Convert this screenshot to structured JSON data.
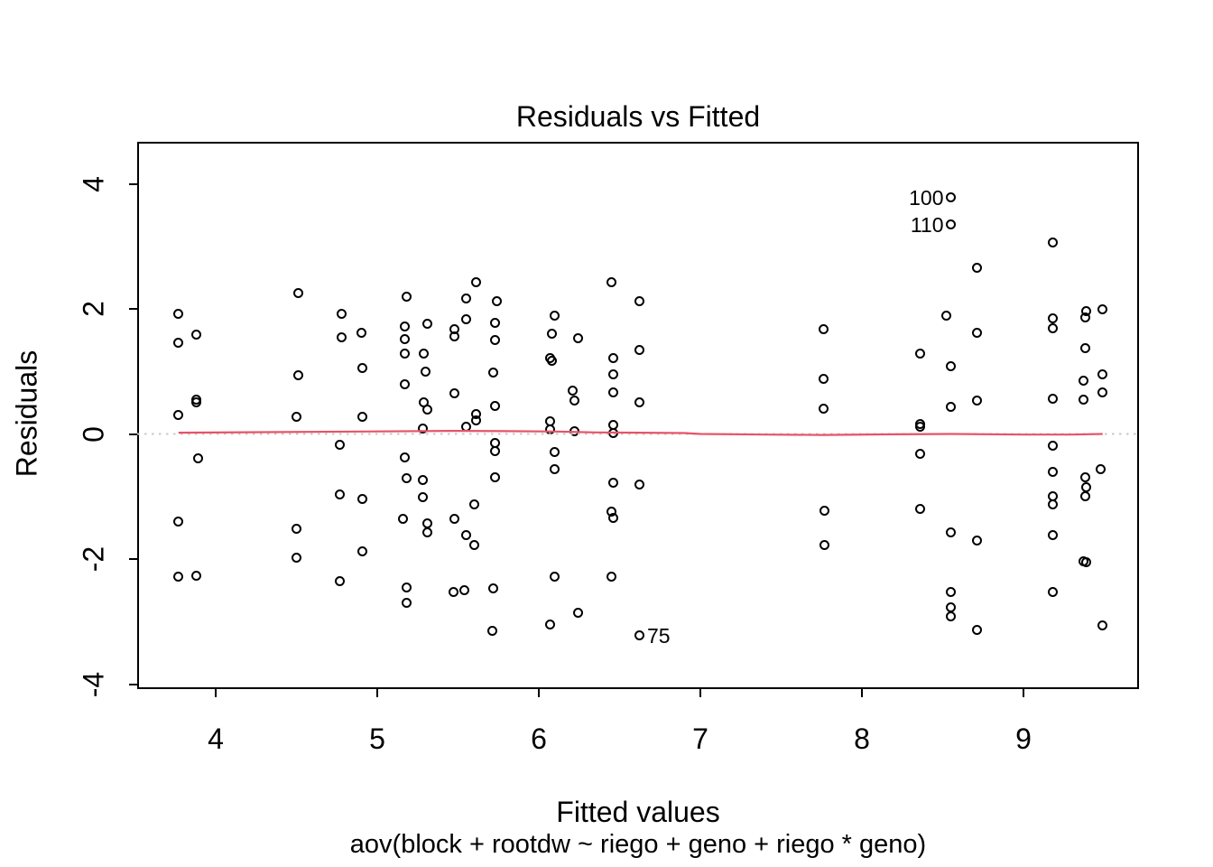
{
  "title": "Residuals vs Fitted",
  "axes": {
    "xlabel": "Fitted values",
    "ylabel": "Residuals",
    "subtitle": "aov(block + rootdw ~ riego + geno + riego * geno)"
  },
  "colors": {
    "point": "#000000",
    "smoother": "#e65468",
    "zero_line": "#c9c9c9",
    "text": "#000000"
  },
  "chart_data": {
    "type": "scatter",
    "title": "Residuals vs Fitted",
    "xlabel": "Fitted values",
    "ylabel": "Residuals",
    "subtitle": "aov(block + rootdw ~ riego + geno + riego * geno)",
    "x_ticks": [
      4,
      5,
      6,
      7,
      8,
      9
    ],
    "y_ticks": [
      -4,
      -2,
      0,
      2,
      4
    ],
    "xlim": [
      3.514,
      9.715
    ],
    "ylim": [
      -4.079,
      4.672
    ],
    "grid": false,
    "zero_reference_line_y": 0,
    "points": [
      [
        3.77,
        1.92
      ],
      [
        3.77,
        1.46
      ],
      [
        3.77,
        0.31
      ],
      [
        3.77,
        -1.4
      ],
      [
        3.77,
        -2.28
      ],
      [
        3.88,
        1.59
      ],
      [
        3.88,
        0.55
      ],
      [
        3.88,
        0.51
      ],
      [
        3.89,
        -0.39
      ],
      [
        3.88,
        -2.26
      ],
      [
        4.51,
        2.25
      ],
      [
        4.51,
        0.94
      ],
      [
        4.5,
        0.28
      ],
      [
        4.5,
        -1.52
      ],
      [
        4.5,
        -1.97
      ],
      [
        4.78,
        1.92
      ],
      [
        4.78,
        1.54
      ],
      [
        4.77,
        -0.17
      ],
      [
        4.77,
        -0.97
      ],
      [
        4.77,
        -2.35
      ],
      [
        4.9,
        1.62
      ],
      [
        4.91,
        1.05
      ],
      [
        4.91,
        0.28
      ],
      [
        4.91,
        -1.04
      ],
      [
        4.91,
        -1.88
      ],
      [
        5.18,
        2.19
      ],
      [
        5.17,
        1.72
      ],
      [
        5.17,
        1.52
      ],
      [
        5.17,
        1.29
      ],
      [
        5.17,
        0.8
      ],
      [
        5.17,
        -0.37
      ],
      [
        5.18,
        -0.7
      ],
      [
        5.16,
        -1.35
      ],
      [
        5.18,
        -2.45
      ],
      [
        5.18,
        -2.7
      ],
      [
        5.31,
        1.77
      ],
      [
        5.29,
        1.29
      ],
      [
        5.3,
        1.0
      ],
      [
        5.29,
        0.5
      ],
      [
        5.31,
        0.39
      ],
      [
        5.28,
        0.09
      ],
      [
        5.28,
        -0.73
      ],
      [
        5.28,
        -1.01
      ],
      [
        5.31,
        -1.43
      ],
      [
        5.31,
        -1.57
      ],
      [
        5.48,
        1.68
      ],
      [
        5.48,
        1.56
      ],
      [
        5.48,
        0.65
      ],
      [
        5.48,
        -1.36
      ],
      [
        5.47,
        -2.53
      ],
      [
        5.55,
        2.17
      ],
      [
        5.55,
        1.84
      ],
      [
        5.55,
        0.12
      ],
      [
        5.55,
        -1.62
      ],
      [
        5.54,
        -2.49
      ],
      [
        5.61,
        2.42
      ],
      [
        5.61,
        0.32
      ],
      [
        5.61,
        0.22
      ],
      [
        5.6,
        -1.12
      ],
      [
        5.6,
        -1.77
      ],
      [
        5.74,
        2.12
      ],
      [
        5.73,
        1.78
      ],
      [
        5.73,
        1.51
      ],
      [
        5.72,
        0.99
      ],
      [
        5.73,
        0.45
      ],
      [
        5.73,
        -0.15
      ],
      [
        5.73,
        -0.28
      ],
      [
        5.73,
        -0.69
      ],
      [
        5.72,
        -2.47
      ],
      [
        5.71,
        -3.14
      ],
      [
        6.1,
        1.89
      ],
      [
        6.08,
        1.6
      ],
      [
        6.07,
        1.21
      ],
      [
        6.08,
        1.17
      ],
      [
        6.07,
        0.21
      ],
      [
        6.07,
        0.08
      ],
      [
        6.1,
        -0.29
      ],
      [
        6.1,
        -0.56
      ],
      [
        6.1,
        -2.28
      ],
      [
        6.07,
        -3.04
      ],
      [
        6.24,
        1.53
      ],
      [
        6.21,
        0.69
      ],
      [
        6.22,
        0.53
      ],
      [
        6.22,
        0.04
      ],
      [
        6.24,
        -2.86
      ],
      [
        6.45,
        2.43
      ],
      [
        6.46,
        1.22
      ],
      [
        6.46,
        0.96
      ],
      [
        6.46,
        0.67
      ],
      [
        6.46,
        0.14
      ],
      [
        6.46,
        0.01
      ],
      [
        6.46,
        -0.78
      ],
      [
        6.45,
        -1.24
      ],
      [
        6.46,
        -1.34
      ],
      [
        6.45,
        -2.28
      ],
      [
        6.62,
        2.13
      ],
      [
        6.62,
        1.35
      ],
      [
        6.62,
        0.51
      ],
      [
        6.62,
        -0.81
      ],
      [
        6.62,
        -3.22
      ],
      [
        7.76,
        1.68
      ],
      [
        7.76,
        0.88
      ],
      [
        7.76,
        0.41
      ],
      [
        7.77,
        -1.23
      ],
      [
        7.77,
        -1.77
      ],
      [
        8.36,
        1.29
      ],
      [
        8.36,
        0.16
      ],
      [
        8.36,
        0.11
      ],
      [
        8.36,
        -0.31
      ],
      [
        8.36,
        -1.2
      ],
      [
        8.55,
        3.78
      ],
      [
        8.55,
        3.35
      ],
      [
        8.52,
        1.89
      ],
      [
        8.55,
        1.09
      ],
      [
        8.55,
        0.43
      ],
      [
        8.55,
        -1.57
      ],
      [
        8.55,
        -2.52
      ],
      [
        8.55,
        -2.77
      ],
      [
        8.55,
        -2.91
      ],
      [
        8.71,
        2.66
      ],
      [
        8.71,
        1.62
      ],
      [
        8.71,
        0.53
      ],
      [
        8.71,
        -1.7
      ],
      [
        8.71,
        -3.13
      ],
      [
        9.18,
        3.06
      ],
      [
        9.18,
        1.85
      ],
      [
        9.18,
        1.69
      ],
      [
        9.18,
        0.56
      ],
      [
        9.18,
        -0.19
      ],
      [
        9.18,
        -0.6
      ],
      [
        9.18,
        -1.0
      ],
      [
        9.18,
        -1.13
      ],
      [
        9.18,
        -1.61
      ],
      [
        9.18,
        -2.53
      ],
      [
        9.39,
        1.97
      ],
      [
        9.38,
        1.87
      ],
      [
        9.38,
        1.38
      ],
      [
        9.37,
        0.86
      ],
      [
        9.37,
        0.55
      ],
      [
        9.38,
        -0.69
      ],
      [
        9.39,
        -0.85
      ],
      [
        9.38,
        -0.99
      ],
      [
        9.37,
        -2.03
      ],
      [
        9.39,
        -2.05
      ],
      [
        9.49,
        2.0
      ],
      [
        9.49,
        0.96
      ],
      [
        9.49,
        0.66
      ],
      [
        9.48,
        -0.56
      ],
      [
        9.49,
        -3.06
      ]
    ],
    "outlier_labels": [
      {
        "label": "100",
        "x": 8.55,
        "y": 3.78,
        "side": "left"
      },
      {
        "label": "110",
        "x": 8.55,
        "y": 3.35,
        "side": "left"
      },
      {
        "label": "75",
        "x": 6.62,
        "y": -3.22,
        "side": "right"
      }
    ],
    "smoother_line": [
      [
        3.77,
        0.02
      ],
      [
        4.3,
        0.03
      ],
      [
        4.9,
        0.04
      ],
      [
        5.45,
        0.05
      ],
      [
        5.8,
        0.045
      ],
      [
        6.1,
        0.04
      ],
      [
        6.35,
        0.025
      ],
      [
        6.62,
        0.02
      ],
      [
        6.9,
        0.015
      ],
      [
        7.0,
        0.0
      ],
      [
        7.4,
        -0.01
      ],
      [
        7.76,
        -0.015
      ],
      [
        8.2,
        -0.005
      ],
      [
        8.55,
        0.0
      ],
      [
        9.0,
        -0.01
      ],
      [
        9.3,
        -0.01
      ],
      [
        9.49,
        0.0
      ]
    ]
  }
}
